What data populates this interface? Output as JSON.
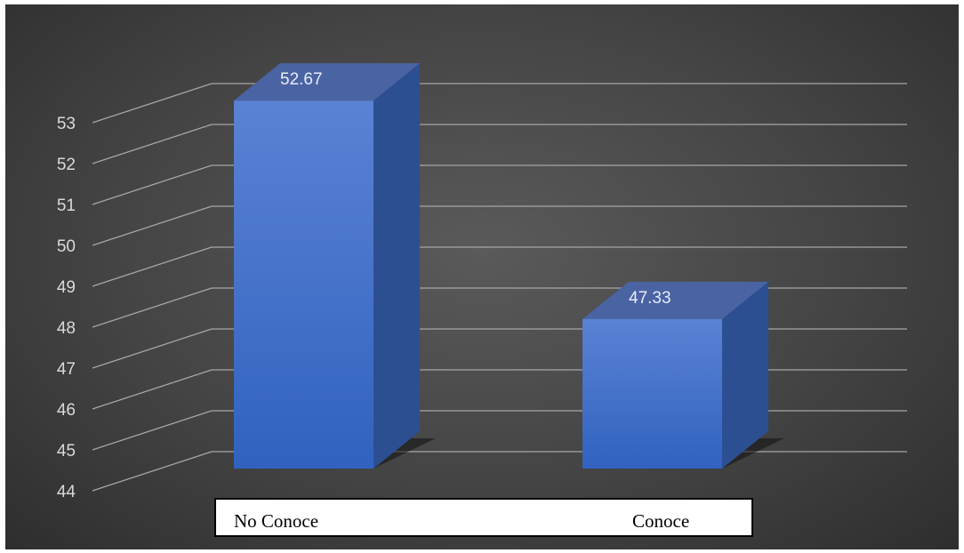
{
  "chart_data": {
    "type": "bar",
    "style": "3d-column",
    "categories": [
      "No Conoce",
      "Conoce"
    ],
    "values": [
      52.67,
      47.33
    ],
    "data_labels": [
      "52.67",
      "47.33"
    ],
    "ylim": [
      44,
      53
    ],
    "yticks": [
      "44",
      "45",
      "46",
      "47",
      "48",
      "49",
      "50",
      "51",
      "52",
      "53"
    ],
    "grid": true,
    "title": "",
    "xlabel": "",
    "ylabel": "",
    "colors": {
      "bar_front": "#4472c4",
      "bar_side": "#2c4f92",
      "bar_top": "#4a63a3",
      "grid": "#a6a6a6",
      "background": "#404040"
    }
  }
}
